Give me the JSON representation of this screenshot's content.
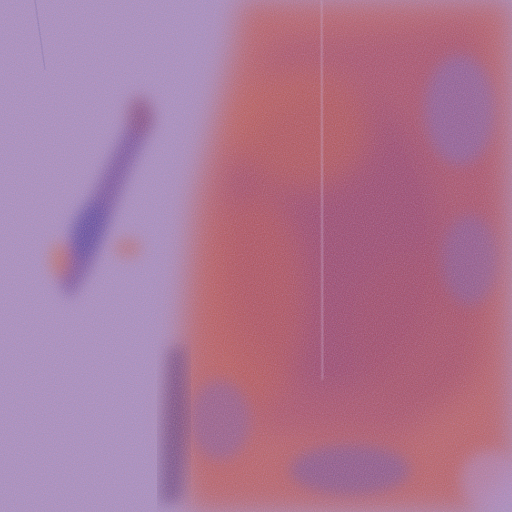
{
  "image": {
    "kind": "false-color radar / remote-sensing texture",
    "palette": {
      "background_blue": "#8f93d8",
      "background_lavender": "#a79ad0",
      "warm_orange": "#d9773f",
      "deep_red": "#9b2f45",
      "deep_blue": "#3a38a8",
      "highlight_yellow": "#e8b25a"
    }
  }
}
